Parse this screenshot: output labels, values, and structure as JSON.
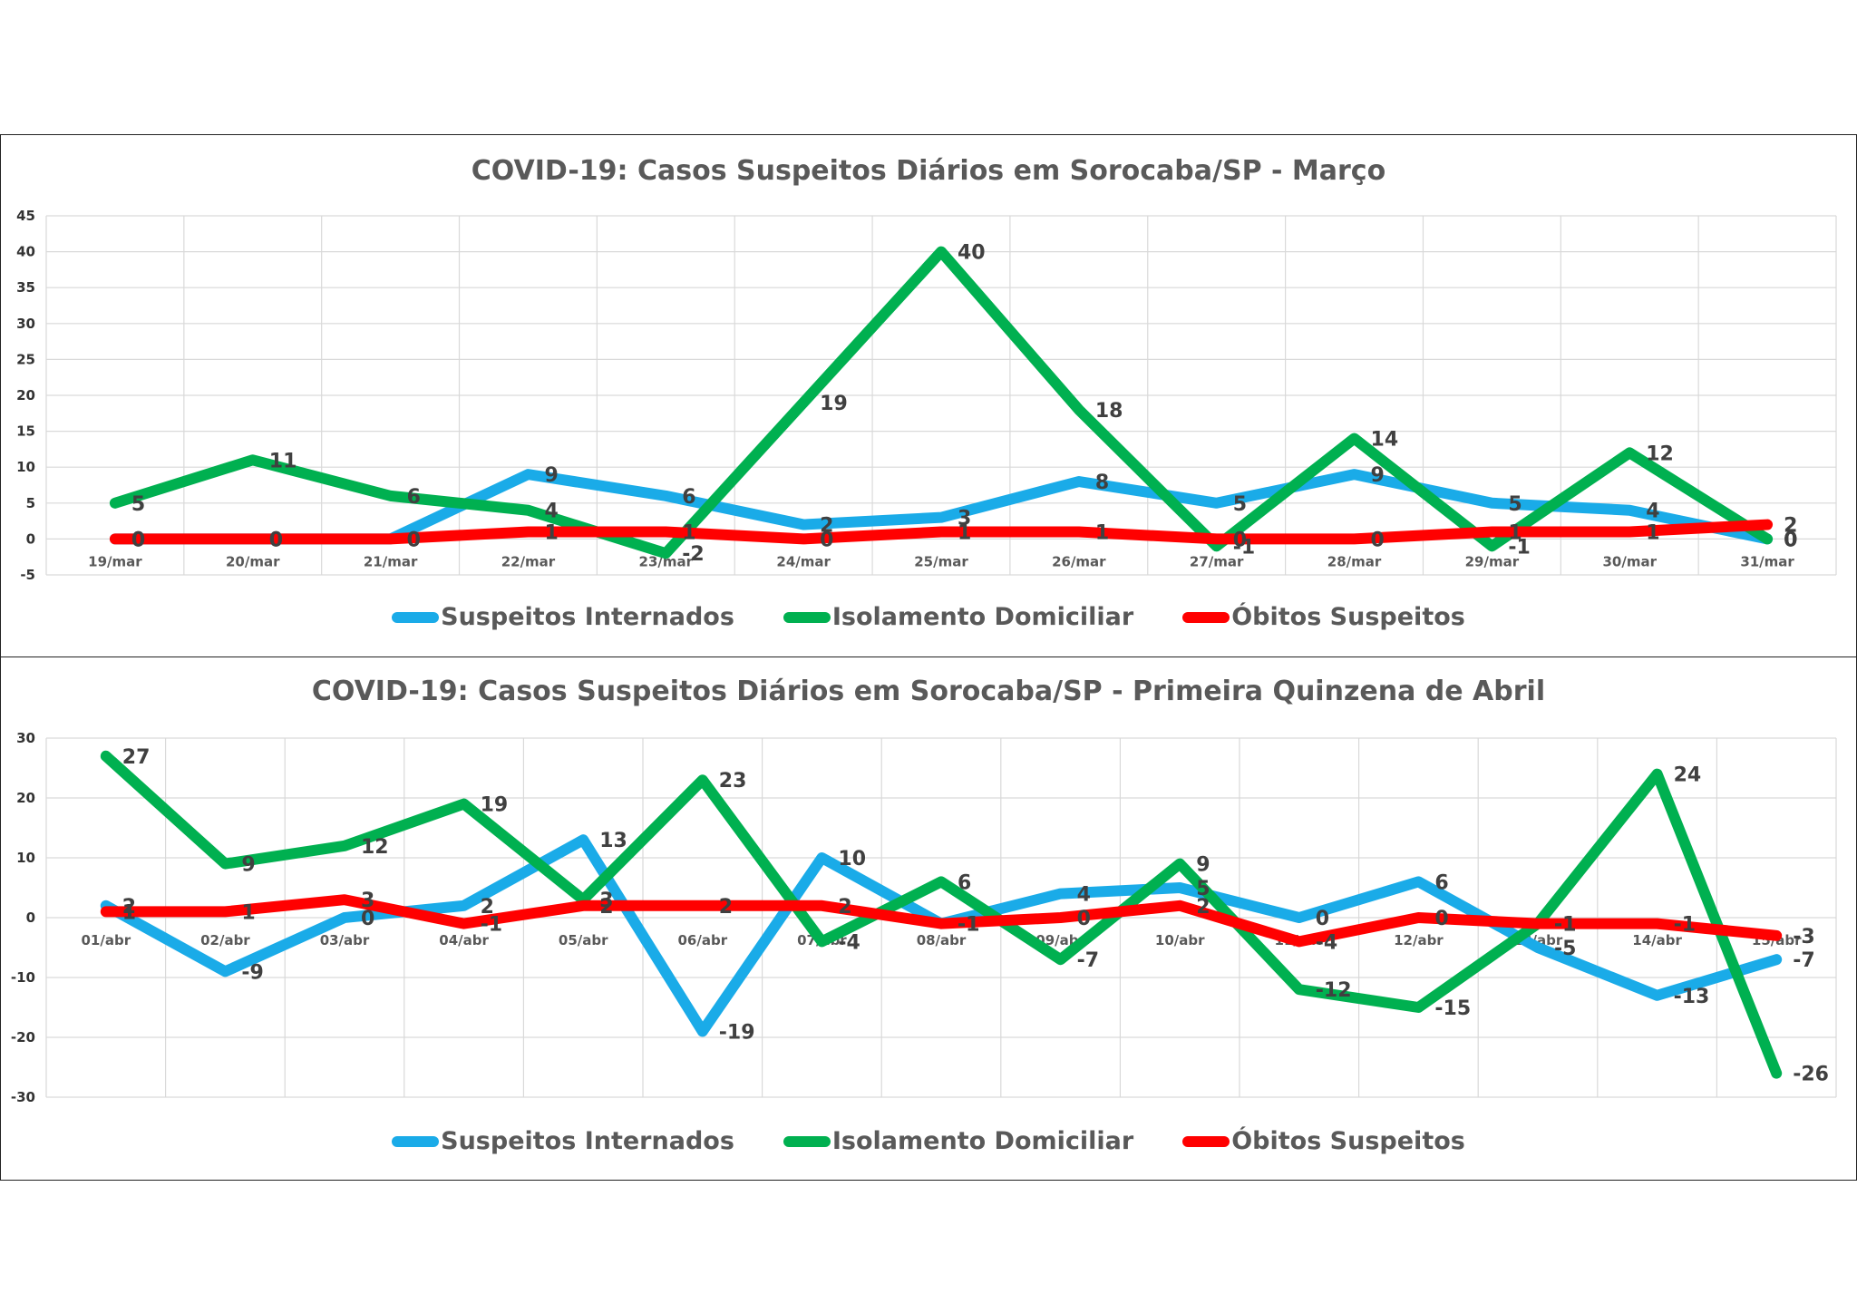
{
  "series_colors": {
    "Suspeitos Internados": "#1aabe8",
    "Isolamento Domiciliar": "#00b050",
    "Óbitos Suspeitos": "#ff0000"
  },
  "chart_data": [
    {
      "type": "line",
      "title": "COVID-19: Casos Suspeitos Diários em Sorocaba/SP - Março",
      "categories": [
        "19/mar",
        "20/mar",
        "21/mar",
        "22/mar",
        "23/mar",
        "24/mar",
        "25/mar",
        "26/mar",
        "27/mar",
        "28/mar",
        "29/mar",
        "30/mar",
        "31/mar"
      ],
      "ylim": [
        -5,
        45
      ],
      "yticks": [
        -5,
        0,
        5,
        10,
        15,
        20,
        25,
        30,
        35,
        40,
        45
      ],
      "grid": true,
      "legend_position": "bottom",
      "series": [
        {
          "name": "Suspeitos Internados",
          "values": [
            0,
            0,
            0,
            9,
            6,
            2,
            3,
            8,
            5,
            9,
            5,
            4,
            0
          ]
        },
        {
          "name": "Isolamento Domiciliar",
          "values": [
            5,
            11,
            6,
            4,
            -2,
            19,
            40,
            18,
            -1,
            14,
            -1,
            12,
            0
          ]
        },
        {
          "name": "Óbitos Suspeitos",
          "values": [
            0,
            0,
            0,
            1,
            1,
            0,
            1,
            1,
            0,
            0,
            1,
            1,
            2
          ]
        }
      ]
    },
    {
      "type": "line",
      "title": "COVID-19: Casos Suspeitos Diários em Sorocaba/SP  - Primeira Quinzena de Abril",
      "categories": [
        "01/abr",
        "02/abr",
        "03/abr",
        "04/abr",
        "05/abr",
        "06/abr",
        "07/abr",
        "08/abr",
        "09/abr",
        "10/abr",
        "11/abr",
        "12/abr",
        "13/abr",
        "14/abr",
        "15/abr"
      ],
      "ylim": [
        -30,
        30
      ],
      "yticks": [
        -30,
        -20,
        -10,
        0,
        10,
        20,
        30
      ],
      "grid": true,
      "legend_position": "bottom",
      "series": [
        {
          "name": "Suspeitos Internados",
          "values": [
            2,
            -9,
            0,
            2,
            13,
            -19,
            10,
            -1,
            4,
            5,
            0,
            6,
            -5,
            -13,
            -7
          ]
        },
        {
          "name": "Isolamento Domiciliar",
          "values": [
            27,
            9,
            12,
            19,
            3,
            23,
            -4,
            6,
            -7,
            9,
            -12,
            -15,
            -1,
            24,
            -26
          ]
        },
        {
          "name": "Óbitos Suspeitos",
          "values": [
            1,
            1,
            3,
            -1,
            2,
            2,
            2,
            -1,
            0,
            2,
            -4,
            0,
            -1,
            -1,
            -3
          ]
        }
      ]
    }
  ]
}
